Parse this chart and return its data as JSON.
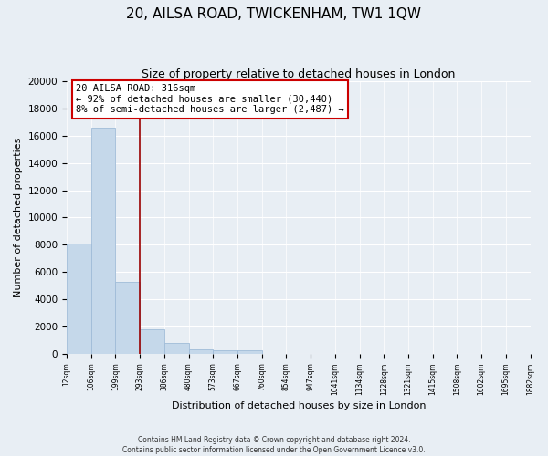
{
  "title": "20, AILSA ROAD, TWICKENHAM, TW1 1QW",
  "subtitle": "Size of property relative to detached houses in London",
  "xlabel": "Distribution of detached houses by size in London",
  "ylabel": "Number of detached properties",
  "bar_values": [
    8100,
    16600,
    5300,
    1800,
    800,
    300,
    250,
    250,
    0,
    0,
    0,
    0,
    0,
    0,
    0,
    0,
    0,
    0,
    0
  ],
  "bin_labels": [
    "12sqm",
    "106sqm",
    "199sqm",
    "293sqm",
    "386sqm",
    "480sqm",
    "573sqm",
    "667sqm",
    "760sqm",
    "854sqm",
    "947sqm",
    "1041sqm",
    "1134sqm",
    "1228sqm",
    "1321sqm",
    "1415sqm",
    "1508sqm",
    "1602sqm",
    "1695sqm",
    "1882sqm"
  ],
  "bar_color": "#c5d8ea",
  "bar_edge_color": "#a0bcd8",
  "vline_x": 2.5,
  "vline_color": "#990000",
  "annotation_title": "20 AILSA ROAD: 316sqm",
  "annotation_line1": "← 92% of detached houses are smaller (30,440)",
  "annotation_line2": "8% of semi-detached houses are larger (2,487) →",
  "annotation_box_color": "#cc0000",
  "ylim": [
    0,
    20000
  ],
  "yticks": [
    0,
    2000,
    4000,
    6000,
    8000,
    10000,
    12000,
    14000,
    16000,
    18000,
    20000
  ],
  "footer_line1": "Contains HM Land Registry data © Crown copyright and database right 2024.",
  "footer_line2": "Contains public sector information licensed under the Open Government Licence v3.0.",
  "bg_color": "#e8eef4",
  "plot_bg_color": "#e8eef4",
  "grid_color": "#ffffff"
}
